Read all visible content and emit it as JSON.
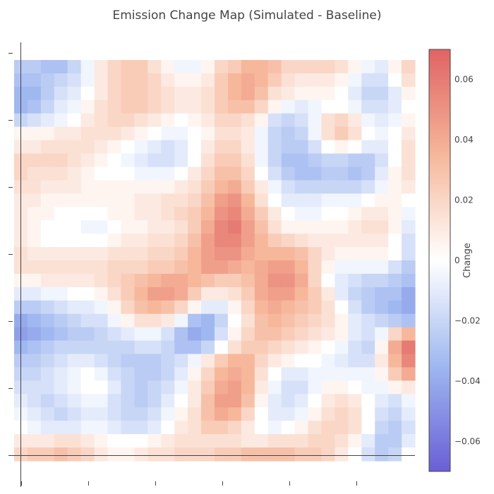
{
  "chart_data": {
    "type": "heatmap",
    "title": "Emission Change Map (Simulated - Baseline)",
    "colorbar": {
      "title": "Change",
      "range": [
        -0.07,
        0.07
      ],
      "ticks": [
        -0.06,
        -0.04,
        -0.02,
        0,
        0.02,
        0.04,
        0.06
      ],
      "tick_labels": [
        "−0.06",
        "−0.04",
        "−0.02",
        "0",
        "0.02",
        "0.04",
        "0.06"
      ],
      "colorscale": [
        "#6a5fd6",
        "#9fb8f0",
        "#ffffff",
        "#f6b79b",
        "#e06363"
      ]
    },
    "grid": {
      "rows": 30,
      "cols": 30
    },
    "x_tick_count": 6,
    "y_tick_count": 7,
    "values": [
      [
        -0.025,
        -0.025,
        -0.03,
        -0.03,
        -0.02,
        -0.005,
        0.01,
        0.02,
        0.025,
        0.025,
        0.015,
        0.005,
        -0.005,
        -0.005,
        0.005,
        0.02,
        0.025,
        0.035,
        0.035,
        0.03,
        0.02,
        0.02,
        0.02,
        0.02,
        0.015,
        0.005,
        -0.005,
        -0.01,
        0.005,
        0.02
      ],
      [
        -0.03,
        -0.03,
        -0.025,
        -0.02,
        -0.015,
        -0.005,
        0.01,
        0.02,
        0.025,
        0.025,
        0.02,
        0.01,
        0.005,
        0.005,
        0.01,
        0.025,
        0.035,
        0.04,
        0.035,
        0.025,
        0.015,
        0.01,
        0.01,
        0.01,
        0.005,
        -0.005,
        -0.015,
        -0.015,
        0,
        0.015
      ],
      [
        -0.035,
        -0.035,
        -0.025,
        -0.015,
        -0.01,
        0,
        0.01,
        0.02,
        0.025,
        0.025,
        0.02,
        0.015,
        0.01,
        0.01,
        0.015,
        0.025,
        0.035,
        0.04,
        0.03,
        0.015,
        0.01,
        0.005,
        0.005,
        0.005,
        0,
        -0.01,
        -0.02,
        -0.02,
        -0.01,
        0.005
      ],
      [
        -0.035,
        -0.03,
        -0.02,
        -0.01,
        -0.005,
        0.005,
        0.015,
        0.02,
        0.025,
        0.025,
        0.02,
        0.015,
        0.01,
        0.01,
        0.015,
        0.025,
        0.03,
        0.03,
        0.02,
        0.005,
        -0.005,
        -0.01,
        -0.005,
        0,
        0,
        -0.005,
        -0.015,
        -0.015,
        -0.01,
        0
      ],
      [
        -0.02,
        -0.015,
        -0.01,
        -0.005,
        0,
        0.01,
        0.015,
        0.02,
        0.02,
        0.015,
        0.01,
        0.005,
        0,
        0.005,
        0.01,
        0.02,
        0.02,
        0.015,
        0.005,
        -0.015,
        -0.02,
        -0.015,
        -0.005,
        0.015,
        0.02,
        0.01,
        -0.005,
        -0.01,
        -0.005,
        0.005
      ],
      [
        0.005,
        0.005,
        0.005,
        0.01,
        0.01,
        0.015,
        0.015,
        0.015,
        0.01,
        0.005,
        0,
        -0.005,
        -0.005,
        0,
        0.005,
        0.015,
        0.015,
        0.01,
        -0.005,
        -0.02,
        -0.025,
        -0.02,
        -0.005,
        0.015,
        0.025,
        0.015,
        0,
        -0.005,
        0,
        0.01
      ],
      [
        0.01,
        0.01,
        0.015,
        0.015,
        0.015,
        0.015,
        0.01,
        0.005,
        0,
        -0.005,
        -0.01,
        -0.015,
        -0.01,
        0,
        0.01,
        0.02,
        0.02,
        0.01,
        -0.005,
        -0.02,
        -0.025,
        -0.025,
        -0.015,
        0,
        0.005,
        0,
        -0.01,
        -0.01,
        0,
        0.015
      ],
      [
        0.02,
        0.02,
        0.02,
        0.02,
        0.015,
        0.01,
        0.005,
        0,
        -0.005,
        -0.01,
        -0.015,
        -0.015,
        -0.01,
        0,
        0.015,
        0.025,
        0.025,
        0.015,
        -0.005,
        -0.02,
        -0.03,
        -0.03,
        -0.025,
        -0.02,
        -0.02,
        -0.025,
        -0.025,
        -0.015,
        0,
        0.015
      ],
      [
        0.02,
        0.015,
        0.015,
        0.015,
        0.01,
        0.005,
        0,
        0,
        0,
        -0.005,
        -0.005,
        -0.005,
        0,
        0.01,
        0.02,
        0.03,
        0.03,
        0.02,
        0,
        -0.015,
        -0.025,
        -0.03,
        -0.03,
        -0.025,
        -0.025,
        -0.03,
        -0.025,
        -0.01,
        0.005,
        0.015
      ],
      [
        0.015,
        0.015,
        0.01,
        0.01,
        0.01,
        0.005,
        0.005,
        0.005,
        0.005,
        0.005,
        0.005,
        0.005,
        0.01,
        0.015,
        0.025,
        0.035,
        0.04,
        0.025,
        0.01,
        -0.005,
        -0.015,
        -0.02,
        -0.02,
        -0.02,
        -0.02,
        -0.02,
        -0.015,
        -0.005,
        0.005,
        0.01
      ],
      [
        0.01,
        0.01,
        0.005,
        0.005,
        0.005,
        0.005,
        0.005,
        0.005,
        0.005,
        0.01,
        0.01,
        0.015,
        0.015,
        0.02,
        0.03,
        0.045,
        0.05,
        0.035,
        0.015,
        0,
        -0.01,
        -0.01,
        -0.01,
        -0.005,
        -0.005,
        -0.005,
        0,
        0.005,
        0.005,
        0
      ],
      [
        0.01,
        0.005,
        0.005,
        0,
        0,
        0,
        0,
        0.005,
        0.005,
        0.01,
        0.01,
        0.015,
        0.02,
        0.025,
        0.035,
        0.05,
        0.055,
        0.04,
        0.025,
        0.01,
        0,
        -0.005,
        -0.005,
        0,
        0,
        0.005,
        0.01,
        0.01,
        0.005,
        -0.005
      ],
      [
        0.01,
        0.005,
        0,
        0,
        0,
        -0.005,
        -0.005,
        0,
        0.005,
        0.005,
        0.01,
        0.01,
        0.015,
        0.025,
        0.04,
        0.055,
        0.06,
        0.045,
        0.03,
        0.015,
        0.005,
        0.005,
        0.005,
        0.005,
        0.005,
        0.01,
        0.015,
        0.015,
        0.005,
        -0.01
      ],
      [
        0.01,
        0.005,
        0,
        0,
        0,
        0,
        0,
        0.005,
        0.01,
        0.01,
        0.015,
        0.015,
        0.02,
        0.03,
        0.045,
        0.055,
        0.055,
        0.045,
        0.035,
        0.025,
        0.02,
        0.015,
        0.01,
        0.01,
        0.01,
        0.01,
        0.01,
        0.01,
        0,
        -0.015
      ],
      [
        0.015,
        0.01,
        0.01,
        0.01,
        0.01,
        0.01,
        0.01,
        0.015,
        0.015,
        0.015,
        0.02,
        0.02,
        0.025,
        0.035,
        0.045,
        0.05,
        0.05,
        0.04,
        0.035,
        0.035,
        0.035,
        0.03,
        0.02,
        0.01,
        0.005,
        0.005,
        0.005,
        0.005,
        0,
        -0.015
      ],
      [
        0.015,
        0.015,
        0.015,
        0.015,
        0.015,
        0.015,
        0.015,
        0.02,
        0.02,
        0.02,
        0.025,
        0.025,
        0.03,
        0.035,
        0.045,
        0.045,
        0.04,
        0.035,
        0.04,
        0.045,
        0.045,
        0.035,
        0.02,
        0.005,
        -0.005,
        -0.005,
        -0.005,
        -0.005,
        -0.015,
        -0.025
      ],
      [
        0.005,
        0.005,
        0.01,
        0.01,
        0.01,
        0.01,
        0.015,
        0.02,
        0.025,
        0.03,
        0.035,
        0.04,
        0.04,
        0.035,
        0.03,
        0.025,
        0.025,
        0.03,
        0.04,
        0.05,
        0.05,
        0.04,
        0.02,
        0,
        -0.01,
        -0.015,
        -0.02,
        -0.02,
        -0.025,
        -0.03
      ],
      [
        -0.01,
        -0.01,
        -0.005,
        -0.005,
        0,
        0,
        0.005,
        0.015,
        0.025,
        0.035,
        0.045,
        0.045,
        0.04,
        0.025,
        0.01,
        0.01,
        0.015,
        0.025,
        0.04,
        0.045,
        0.045,
        0.035,
        0.025,
        0.01,
        -0.01,
        -0.02,
        -0.025,
        -0.03,
        -0.03,
        -0.04
      ],
      [
        -0.025,
        -0.025,
        -0.02,
        -0.015,
        -0.01,
        -0.01,
        -0.005,
        0.005,
        0.02,
        0.03,
        0.035,
        0.03,
        0.02,
        0.005,
        -0.01,
        -0.01,
        0.005,
        0.02,
        0.035,
        0.04,
        0.035,
        0.03,
        0.025,
        0.015,
        0,
        -0.015,
        -0.025,
        -0.03,
        -0.035,
        -0.04
      ],
      [
        -0.04,
        -0.035,
        -0.03,
        -0.025,
        -0.02,
        -0.015,
        -0.015,
        -0.005,
        0.005,
        0.015,
        0.015,
        0.01,
        -0.005,
        -0.03,
        -0.035,
        -0.02,
        0,
        0.015,
        0.03,
        0.035,
        0.03,
        0.025,
        0.02,
        0.015,
        0.005,
        -0.01,
        -0.015,
        -0.02,
        -0.025,
        -0.03
      ],
      [
        -0.045,
        -0.04,
        -0.035,
        -0.03,
        -0.025,
        -0.025,
        -0.02,
        -0.015,
        -0.01,
        -0.005,
        -0.005,
        -0.015,
        -0.03,
        -0.04,
        -0.035,
        -0.015,
        0.005,
        0.02,
        0.03,
        0.03,
        0.025,
        0.02,
        0.015,
        0.01,
        0.005,
        -0.01,
        -0.015,
        -0.005,
        0.02,
        0.035
      ],
      [
        -0.035,
        -0.03,
        -0.025,
        -0.02,
        -0.02,
        -0.02,
        -0.02,
        -0.02,
        -0.02,
        -0.015,
        -0.015,
        -0.02,
        -0.03,
        -0.03,
        -0.02,
        0,
        0.015,
        0.025,
        0.025,
        0.02,
        0.015,
        0.01,
        0.005,
        0,
        -0.005,
        -0.015,
        -0.02,
        0.005,
        0.04,
        0.06
      ],
      [
        -0.025,
        -0.025,
        -0.02,
        -0.015,
        -0.01,
        -0.01,
        -0.015,
        -0.02,
        -0.025,
        -0.025,
        -0.025,
        -0.02,
        -0.015,
        -0.005,
        0.01,
        0.025,
        0.035,
        0.035,
        0.02,
        0.01,
        0.005,
        0,
        0,
        -0.005,
        -0.01,
        -0.015,
        -0.015,
        0.01,
        0.035,
        0.055
      ],
      [
        -0.02,
        -0.02,
        -0.015,
        -0.01,
        -0.005,
        0,
        -0.005,
        -0.015,
        -0.02,
        -0.025,
        -0.025,
        -0.02,
        -0.01,
        0.005,
        0.02,
        0.035,
        0.04,
        0.035,
        0.015,
        0,
        -0.01,
        -0.01,
        -0.005,
        -0.005,
        -0.005,
        -0.005,
        -0.005,
        0.005,
        0.025,
        0.04
      ],
      [
        -0.015,
        -0.015,
        -0.015,
        -0.01,
        -0.005,
        0,
        0,
        -0.01,
        -0.02,
        -0.025,
        -0.02,
        -0.015,
        -0.005,
        0.01,
        0.025,
        0.04,
        0.045,
        0.035,
        0.01,
        -0.005,
        -0.015,
        -0.015,
        -0.005,
        0.005,
        0.005,
        0,
        -0.005,
        -0.005,
        0.005,
        0.01
      ],
      [
        -0.01,
        -0.015,
        -0.02,
        -0.015,
        -0.01,
        -0.005,
        -0.005,
        -0.015,
        -0.02,
        -0.025,
        -0.02,
        -0.01,
        0,
        0.01,
        0.03,
        0.045,
        0.045,
        0.03,
        0.005,
        -0.01,
        -0.015,
        -0.01,
        0,
        0.01,
        0.015,
        0.01,
        0,
        -0.01,
        -0.015,
        -0.005
      ],
      [
        -0.005,
        -0.01,
        -0.015,
        -0.02,
        -0.015,
        -0.01,
        -0.01,
        -0.015,
        -0.02,
        -0.02,
        -0.015,
        -0.005,
        0.005,
        0.015,
        0.03,
        0.04,
        0.035,
        0.02,
        0,
        -0.01,
        -0.01,
        -0.005,
        0.005,
        0.015,
        0.02,
        0.015,
        0,
        -0.015,
        -0.02,
        -0.01
      ],
      [
        0,
        -0.005,
        -0.01,
        -0.01,
        -0.01,
        -0.005,
        -0.005,
        -0.01,
        -0.015,
        -0.015,
        -0.01,
        0,
        0.01,
        0.015,
        0.025,
        0.025,
        0.02,
        0.01,
        0,
        -0.005,
        0,
        0.005,
        0.015,
        0.02,
        0.02,
        0.015,
        0,
        -0.02,
        -0.025,
        -0.015
      ],
      [
        0.01,
        0.01,
        0.01,
        0.015,
        0.015,
        0.01,
        0.005,
        0,
        0,
        0,
        0.005,
        0.01,
        0.015,
        0.015,
        0.015,
        0.015,
        0.015,
        0.01,
        0.01,
        0.015,
        0.015,
        0.015,
        0.02,
        0.02,
        0.015,
        0.005,
        -0.01,
        -0.025,
        -0.025,
        -0.01
      ],
      [
        0.02,
        0.025,
        0.025,
        0.03,
        0.025,
        0.02,
        0.01,
        0.005,
        0.005,
        0.01,
        0.015,
        0.015,
        0.02,
        0.02,
        0.02,
        0.025,
        0.025,
        0.03,
        0.03,
        0.03,
        0.03,
        0.025,
        0.025,
        0.02,
        0.01,
        0,
        -0.015,
        -0.025,
        -0.02,
        0
      ]
    ]
  }
}
